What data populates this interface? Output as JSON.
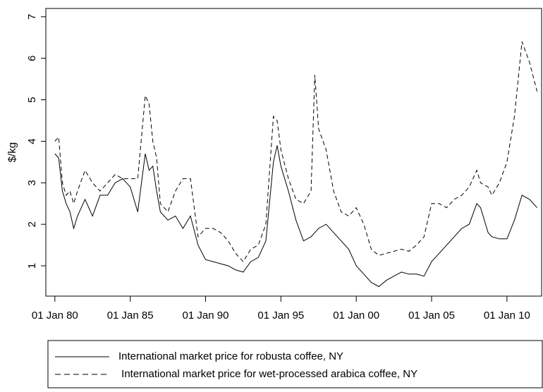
{
  "chart_data": {
    "type": "line",
    "y_label": "$/kg",
    "x": [
      1980,
      1980.25,
      1980.5,
      1980.75,
      1981,
      1981.25,
      1981.5,
      1982,
      1982.5,
      1983,
      1983.5,
      1984,
      1984.5,
      1985,
      1985.5,
      1986,
      1986.25,
      1986.5,
      1986.75,
      1987,
      1987.5,
      1988,
      1988.5,
      1989,
      1989.5,
      1990,
      1990.5,
      1991,
      1991.5,
      1992,
      1992.5,
      1993,
      1993.5,
      1994,
      1994.5,
      1994.75,
      1995,
      1995.5,
      1996,
      1996.5,
      1997,
      1997.25,
      1997.5,
      1998,
      1998.5,
      1999,
      1999.5,
      2000,
      2000.5,
      2001,
      2001.5,
      2002,
      2002.5,
      2003,
      2003.5,
      2004,
      2004.5,
      2005,
      2005.5,
      2006,
      2006.5,
      2007,
      2007.5,
      2008,
      2008.25,
      2008.75,
      2009,
      2009.5,
      2010,
      2010.5,
      2011,
      2011.5,
      2012
    ],
    "series": [
      {
        "name": "International market price for robusta coffee, NY",
        "color": "#000000",
        "linestyle": "solid",
        "values": [
          3.7,
          3.6,
          2.8,
          2.5,
          2.3,
          1.9,
          2.2,
          2.6,
          2.2,
          2.7,
          2.7,
          3.0,
          3.1,
          2.9,
          2.3,
          3.7,
          3.3,
          3.4,
          2.8,
          2.3,
          2.1,
          2.2,
          1.9,
          2.2,
          1.5,
          1.15,
          1.1,
          1.05,
          1.0,
          0.9,
          0.85,
          1.1,
          1.2,
          1.6,
          3.5,
          3.9,
          3.4,
          2.8,
          2.1,
          1.6,
          1.7,
          1.8,
          1.9,
          2.0,
          1.8,
          1.6,
          1.4,
          1.0,
          0.8,
          0.6,
          0.5,
          0.65,
          0.75,
          0.85,
          0.8,
          0.8,
          0.75,
          1.1,
          1.3,
          1.5,
          1.7,
          1.9,
          2.0,
          2.5,
          2.4,
          1.8,
          1.7,
          1.65,
          1.65,
          2.1,
          2.7,
          2.6,
          2.4
        ]
      },
      {
        "name": " International market price for wet-processed arabica coffee, NY",
        "color": "#000000",
        "linestyle": "dashed",
        "values": [
          4.0,
          4.1,
          3.0,
          2.7,
          2.8,
          2.5,
          2.8,
          3.3,
          3.0,
          2.8,
          3.0,
          3.2,
          3.1,
          3.1,
          3.1,
          5.1,
          4.9,
          4.0,
          3.6,
          2.5,
          2.3,
          2.8,
          3.1,
          3.1,
          1.7,
          1.9,
          1.9,
          1.8,
          1.6,
          1.3,
          1.1,
          1.4,
          1.5,
          2.0,
          4.6,
          4.5,
          3.8,
          3.1,
          2.6,
          2.5,
          2.8,
          5.6,
          4.3,
          3.8,
          2.8,
          2.3,
          2.2,
          2.4,
          2.0,
          1.4,
          1.25,
          1.3,
          1.35,
          1.4,
          1.35,
          1.5,
          1.7,
          2.5,
          2.5,
          2.4,
          2.6,
          2.7,
          2.9,
          3.3,
          3.0,
          2.9,
          2.7,
          3.0,
          3.5,
          4.6,
          6.4,
          5.9,
          5.2
        ]
      }
    ],
    "xlim": [
      1979.4,
      2012.3
    ],
    "xticks": [
      {
        "value": 1980,
        "label": "01 Jan 80"
      },
      {
        "value": 1985,
        "label": "01 Jan 85"
      },
      {
        "value": 1990,
        "label": "01 Jan 90"
      },
      {
        "value": 1995,
        "label": "01 Jan 95"
      },
      {
        "value": 2000,
        "label": "01 Jan 00"
      },
      {
        "value": 2005,
        "label": "01 Jan 05"
      },
      {
        "value": 2010,
        "label": "01 Jan 10"
      }
    ],
    "ylim": [
      0.27,
      7.2
    ],
    "yticks": [
      1,
      2,
      3,
      4,
      5,
      6,
      7
    ],
    "legend": "bottom"
  }
}
